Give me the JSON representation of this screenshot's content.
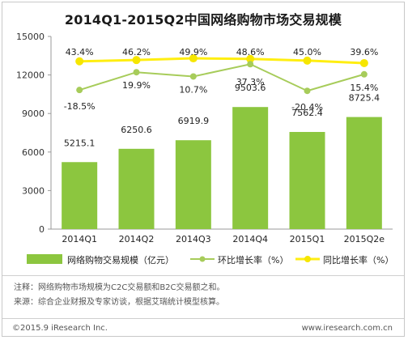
{
  "chart_data": {
    "type": "bar",
    "title": "2014Q1-2015Q2中国网络购物市场交易规模",
    "categories": [
      "2014Q1",
      "2014Q2",
      "2014Q3",
      "2014Q4",
      "2015Q1",
      "2015Q2e"
    ],
    "ylim": [
      0,
      15000
    ],
    "y_ticks": [
      "0",
      "3000",
      "6000",
      "9000",
      "12000",
      "15000"
    ],
    "bar_series": {
      "name": "网络购物交易规模（亿元）",
      "values": [
        5215.1,
        6250.6,
        6919.9,
        9503.6,
        7562.4,
        8725.4
      ],
      "labels": [
        "5215.1",
        "6250.6",
        "6919.9",
        "9503.6",
        "7562.4",
        "8725.4"
      ]
    },
    "series": [
      {
        "name": "环比增长率（%）",
        "values": [
          -18.5,
          19.9,
          10.7,
          37.3,
          -20.4,
          15.4
        ],
        "labels": [
          "-18.5%",
          "19.9%",
          "10.7%",
          "37.3%",
          "-20.4%",
          "15.4%"
        ]
      },
      {
        "name": "同比增长率（%）",
        "values": [
          43.4,
          46.2,
          49.9,
          48.6,
          45.0,
          39.6
        ],
        "labels": [
          "43.4%",
          "46.2%",
          "49.9%",
          "48.6%",
          "45.0%",
          "39.6%"
        ]
      }
    ],
    "grid": false,
    "legend_position": "bottom"
  },
  "colors": {
    "bar": "#8cc63f",
    "hb_line": "#a7cc5a",
    "yoy_line": "#ffee11",
    "yoy_marker": "#f6e600"
  },
  "notes": {
    "note": "注释：网络购物市场规模为C2C交易额和B2C交易额之和。",
    "source": "来源：综合企业财报及专家访谈，根据艾瑞统计模型核算。"
  },
  "footer": {
    "copyright": "©2015.9 iResearch Inc.",
    "url": "www.iresearch.com.cn"
  }
}
